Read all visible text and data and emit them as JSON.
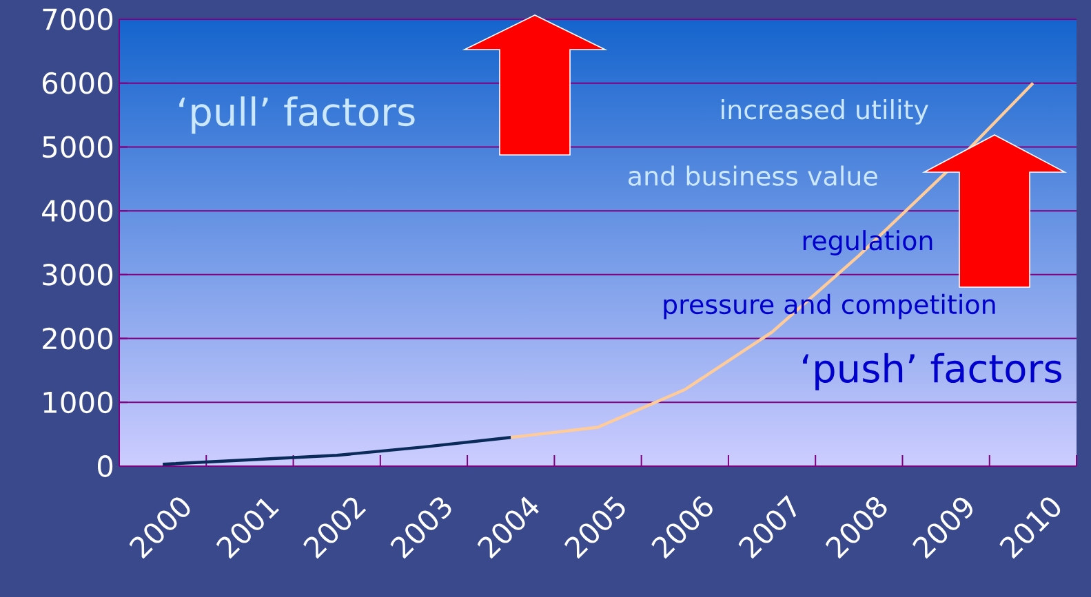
{
  "chart_data": {
    "type": "line",
    "categories": [
      "2000",
      "2001",
      "2002",
      "2003",
      "2004",
      "2005",
      "2006",
      "2007",
      "2008",
      "2009",
      "2010"
    ],
    "series": [
      {
        "color": "#0a2a5a",
        "values": [
          30,
          100,
          170,
          300,
          450,
          null,
          null,
          null,
          null,
          null,
          null
        ]
      },
      {
        "color": "#ffcc99",
        "values": [
          null,
          null,
          null,
          null,
          450,
          610,
          1200,
          2100,
          3300,
          4600,
          6000
        ]
      }
    ],
    "ylim": [
      0,
      7000
    ],
    "yticks": [
      0,
      1000,
      2000,
      3000,
      4000,
      5000,
      6000,
      7000
    ],
    "grid": "y",
    "annotations": [
      "‘pull’ factors",
      "increased utility",
      "and business value",
      "regulation",
      "pressure and competition",
      "‘push’ factors"
    ]
  }
}
